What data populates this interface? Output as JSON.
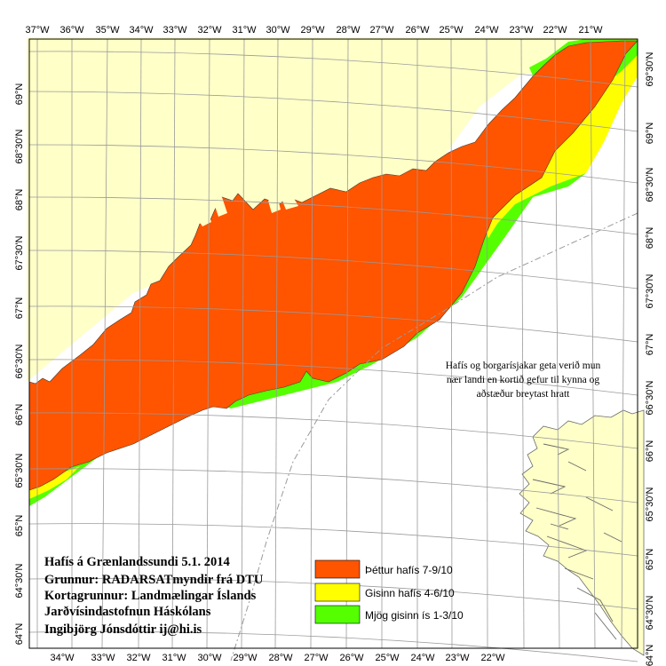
{
  "colors": {
    "land": "#ffffc8",
    "sea": "#ffffff",
    "dense_ice": "#ff5400",
    "open_ice": "#ffff00",
    "very_open_ice": "#55ff00",
    "graticule": "#9a9a9a",
    "outline": "#4a3a2a",
    "iceland_coast": "#6a6a6a"
  },
  "top_lon_labels": [
    "37°W",
    "36°W",
    "35°W",
    "34°W",
    "33°W",
    "32°W",
    "31°W",
    "30°W",
    "29°W",
    "28°W",
    "27°W",
    "26°W",
    "25°W",
    "24°W",
    "23°W",
    "22°W",
    "21°W"
  ],
  "bottom_lon_labels": [
    "34°W",
    "33°W",
    "32°W",
    "31°W",
    "30°W",
    "29°W",
    "28°W",
    "27°W",
    "26°W",
    "25°W",
    "24°W",
    "23°W",
    "22°W"
  ],
  "left_lat_labels": [
    "69°N",
    "68°30'N",
    "68°N",
    "67°30'N",
    "67°N",
    "66°30'N",
    "66°N",
    "65°30'N",
    "65°N",
    "64°30'N",
    "64°N"
  ],
  "right_lat_labels": [
    "69°30'N",
    "69°N",
    "68°30'N",
    "68°N",
    "67°30'N",
    "67°N",
    "66°30'N",
    "66°N",
    "65°30'N",
    "65°N",
    "64°30'N",
    "64°N"
  ],
  "note": {
    "line1": "Hafís og borgarísjakar geta verið mun",
    "line2": "nær landi en kortið gefur til kynna og",
    "line3": "aðstæður breytast hratt"
  },
  "info": {
    "line1": "Hafís á Grænlandssundi  5.1. 2014",
    "line2": "Grunnur: RADARSATmyndir frá DTU",
    "line3": "Kortagrunnur: Landmælingar Íslands",
    "line4": "Jarðvísindastofnun Háskólans",
    "line5": "Ingibjörg Jónsdóttir ij@hi.is"
  },
  "legend": [
    {
      "label": "Þéttur hafís  7-9/10",
      "color_key": "dense_ice"
    },
    {
      "label": "Gisinn hafís  4-6/10",
      "color_key": "open_ice"
    },
    {
      "label": "Mjög gisinn ís  1-3/10",
      "color_key": "very_open_ice"
    }
  ]
}
